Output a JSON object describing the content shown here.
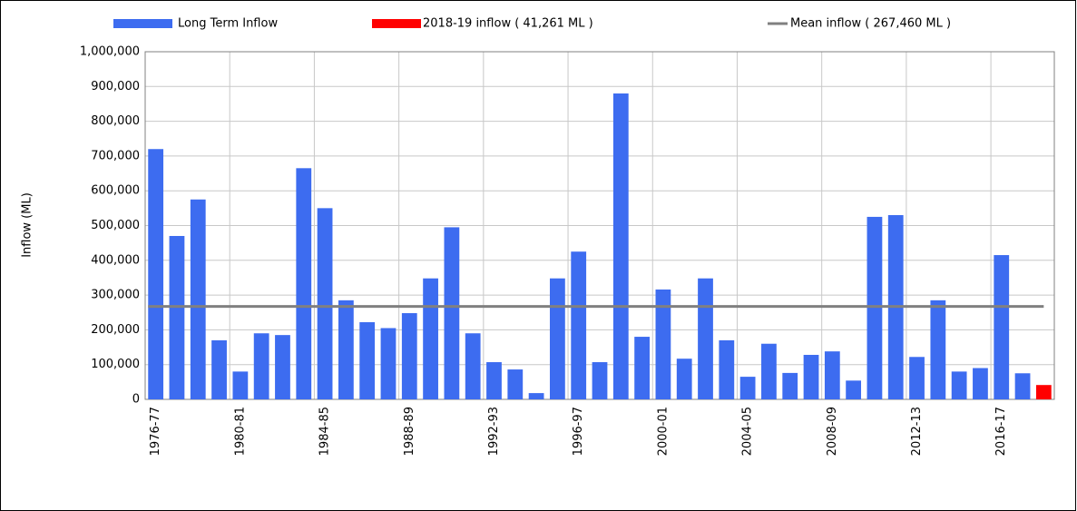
{
  "chart_data": {
    "type": "bar",
    "y_label": "Inflow (ML)",
    "categories": [
      "1976-77",
      null,
      null,
      null,
      "1980-81",
      null,
      null,
      null,
      "1984-85",
      null,
      null,
      null,
      "1988-89",
      null,
      null,
      null,
      "1992-93",
      null,
      null,
      null,
      "1996-97",
      null,
      null,
      null,
      "2000-01",
      null,
      null,
      null,
      "2004-05",
      null,
      null,
      null,
      "2008-09",
      null,
      null,
      null,
      "2012-13",
      null,
      null,
      null,
      "2016-17",
      null,
      null
    ],
    "series": [
      {
        "name": "Long Term Inflow",
        "color": "#3d6cf0",
        "values": [
          720000,
          470000,
          575000,
          170000,
          80000,
          190000,
          185000,
          665000,
          550000,
          285000,
          222000,
          205000,
          248000,
          348000,
          495000,
          190000,
          107000,
          86000,
          18000,
          348000,
          425000,
          107000,
          880000,
          180000,
          316000,
          117000,
          348000,
          170000,
          65000,
          160000,
          76000,
          128000,
          138000,
          54000,
          525000,
          530000,
          122000,
          285000,
          80000,
          90000,
          415000,
          75000,
          null
        ]
      },
      {
        "name": "2018-19 inflow ( 41,261 ML )",
        "color": "#ff0000",
        "values": [
          null,
          null,
          null,
          null,
          null,
          null,
          null,
          null,
          null,
          null,
          null,
          null,
          null,
          null,
          null,
          null,
          null,
          null,
          null,
          null,
          null,
          null,
          null,
          null,
          null,
          null,
          null,
          null,
          null,
          null,
          null,
          null,
          null,
          null,
          null,
          null,
          null,
          null,
          null,
          null,
          null,
          null,
          41261
        ]
      }
    ],
    "mean": {
      "name": "Mean inflow ( 267,460 ML )",
      "value": 267460,
      "color": "#808080"
    },
    "ylim": [
      0,
      1000000
    ],
    "yticks": [
      0,
      {
        "value": 100000,
        "label": "100,000"
      },
      {
        "value": 200000,
        "label": "200,000"
      },
      {
        "value": 300000,
        "label": "300,000"
      },
      {
        "value": 400000,
        "label": "400,000"
      },
      {
        "value": 500000,
        "label": "500,000"
      },
      {
        "value": 600000,
        "label": "600,000"
      },
      {
        "value": 700000,
        "label": "700,000"
      },
      {
        "value": 800000,
        "label": "800,000"
      },
      {
        "value": 900000,
        "label": "900,000"
      },
      {
        "value": 1000000,
        "label": "1,000,000"
      }
    ],
    "grid": true
  }
}
